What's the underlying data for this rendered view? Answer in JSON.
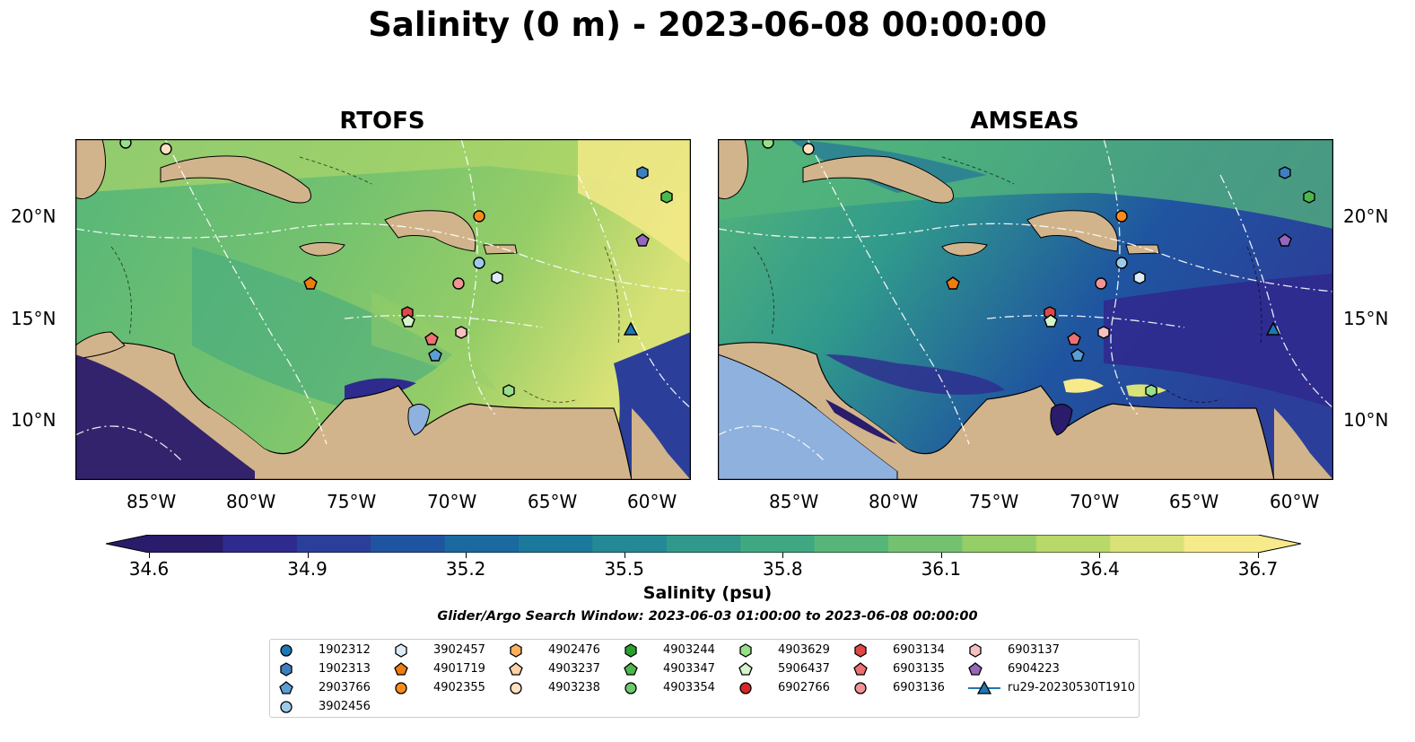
{
  "title": "Salinity (0 m) - 2023-06-08 00:00:00",
  "panels": [
    {
      "title": "RTOFS"
    },
    {
      "title": "AMSEAS"
    }
  ],
  "axes": {
    "lon_ticks": [
      "85°W",
      "80°W",
      "75°W",
      "70°W",
      "65°W",
      "60°W"
    ],
    "lat_ticks": [
      "20°N",
      "15°N",
      "10°N"
    ]
  },
  "colorbar": {
    "label": "Salinity (psu)",
    "ticks": [
      "34.6",
      "34.9",
      "35.2",
      "35.5",
      "35.8",
      "36.1",
      "36.4",
      "36.7"
    ],
    "min": 34.6,
    "max": 36.7,
    "colors": [
      "#2a1b6b",
      "#2f2a8e",
      "#2b3f9a",
      "#1f55a0",
      "#1a699f",
      "#1b7a9b",
      "#238a95",
      "#30998c",
      "#3fa882",
      "#56b679",
      "#74c26f",
      "#95cd67",
      "#b8d869",
      "#d9e276",
      "#f6ea8a"
    ]
  },
  "search_window": "Glider/Argo Search Window: 2023-06-03 01:00:00 to 2023-06-08 00:00:00",
  "legend": [
    {
      "label": "1902312",
      "marker": "circle",
      "color": "#1f77b4"
    },
    {
      "label": "1902313",
      "marker": "hexagon",
      "color": "#3d7fbf"
    },
    {
      "label": "2903766",
      "marker": "pentagon",
      "color": "#5a9fd4"
    },
    {
      "label": "3902456",
      "marker": "circle",
      "color": "#9ecae9"
    },
    {
      "label": "3902457",
      "marker": "hexagon",
      "color": "#dbecf8"
    },
    {
      "label": "4901719",
      "marker": "pentagon",
      "color": "#ef7c0e"
    },
    {
      "label": "4902355",
      "marker": "circle",
      "color": "#ff8c1a"
    },
    {
      "label": "4902476",
      "marker": "hexagon",
      "color": "#ffb05a"
    },
    {
      "label": "4903237",
      "marker": "pentagon",
      "color": "#ffd2a6"
    },
    {
      "label": "4903238",
      "marker": "circle",
      "color": "#ffe0c2"
    },
    {
      "label": "4903244",
      "marker": "hexagon",
      "color": "#2ca02c"
    },
    {
      "label": "4903347",
      "marker": "pentagon",
      "color": "#4cb84c"
    },
    {
      "label": "4903354",
      "marker": "circle",
      "color": "#6cc96c"
    },
    {
      "label": "4903629",
      "marker": "hexagon",
      "color": "#98df8a"
    },
    {
      "label": "5906437",
      "marker": "pentagon",
      "color": "#d4f5cc"
    },
    {
      "label": "6902766",
      "marker": "circle",
      "color": "#d62728"
    },
    {
      "label": "6903134",
      "marker": "hexagon",
      "color": "#e04848"
    },
    {
      "label": "6903135",
      "marker": "pentagon",
      "color": "#ee7070"
    },
    {
      "label": "6903136",
      "marker": "circle",
      "color": "#f29494"
    },
    {
      "label": "6903137",
      "marker": "hexagon",
      "color": "#f7c0c0"
    },
    {
      "label": "6904223",
      "marker": "pentagon",
      "color": "#9467bd"
    },
    {
      "label": "ru29-20230530T1910",
      "marker": "triangle",
      "color": "#1f77b4"
    }
  ]
}
